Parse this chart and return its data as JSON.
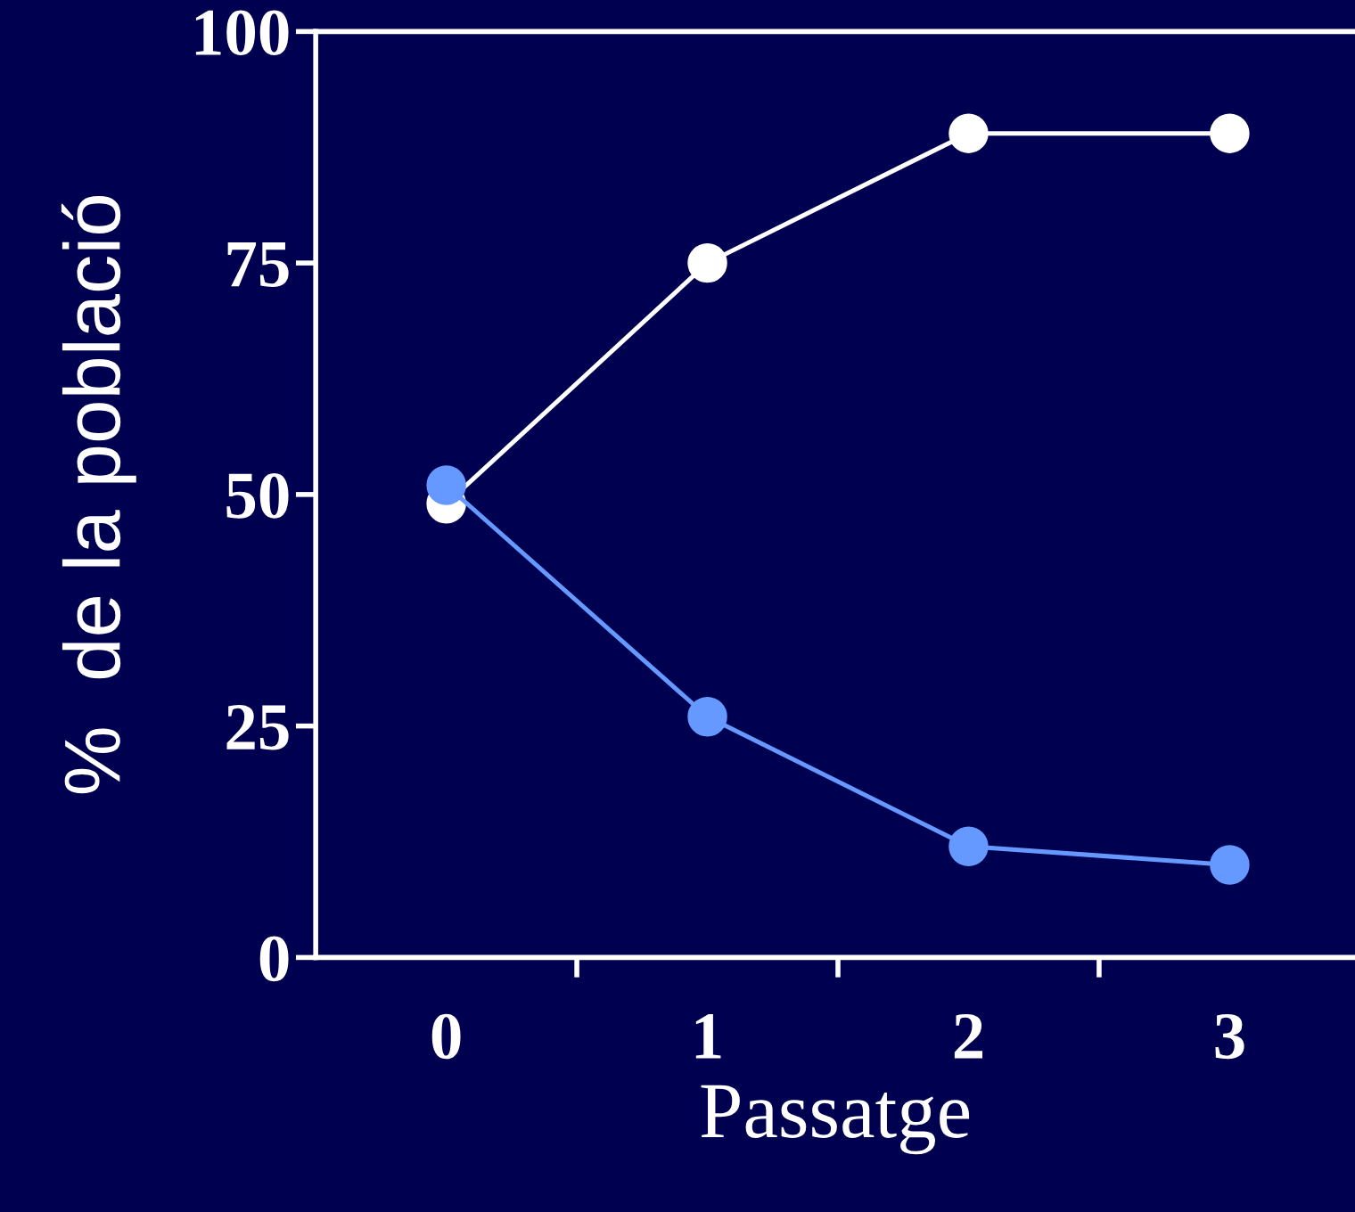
{
  "chart_data": {
    "type": "line",
    "xlabel": "Passatge",
    "ylabel": "%  de la població",
    "categories": [
      "0",
      "1",
      "2",
      "3"
    ],
    "series": [
      {
        "color": "#ffffff",
        "values": [
          49,
          75,
          89,
          89
        ]
      },
      {
        "color": "#6699ff",
        "values": [
          51,
          26,
          12,
          10
        ]
      }
    ],
    "ylim": [
      0,
      100
    ],
    "yticks": [
      0,
      25,
      50,
      75,
      100
    ],
    "grid": false,
    "legend": false,
    "marker": "circle",
    "line_style": "solid"
  }
}
